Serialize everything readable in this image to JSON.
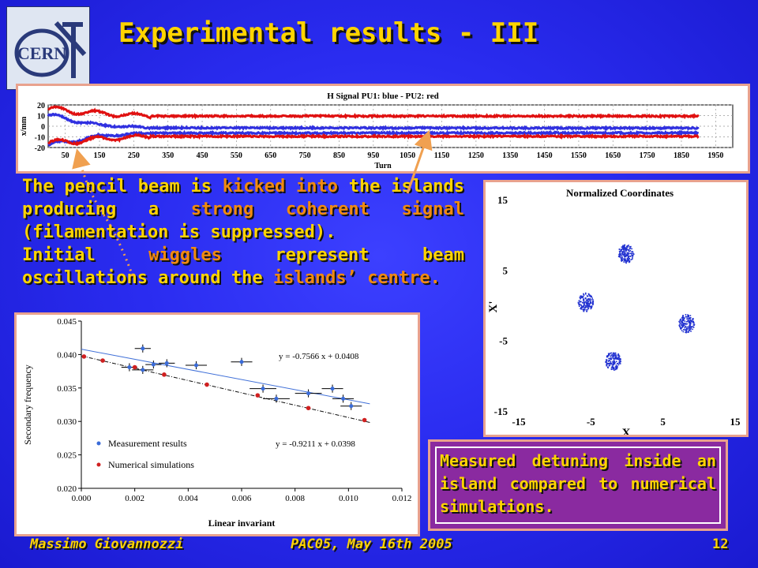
{
  "slide": {
    "title": "Experimental results - III",
    "logo_text": "CERN",
    "paragraph1": {
      "segments": [
        {
          "text": "The pencil beam is ",
          "highlight": false
        },
        {
          "text": "kicked into",
          "highlight": true
        },
        {
          "text": " the islands producing a ",
          "highlight": false
        },
        {
          "text": "strong coherent signal",
          "highlight": true
        },
        {
          "text": " (filamentation is suppressed).",
          "highlight": false
        }
      ]
    },
    "paragraph2": {
      "segments": [
        {
          "text": "Initial ",
          "highlight": false
        },
        {
          "text": "wiggles",
          "highlight": true
        },
        {
          "text": " represent beam oscillations around the ",
          "highlight": false
        },
        {
          "text": "islands’ centre.",
          "highlight": true
        }
      ]
    },
    "callout": "Measured detuning inside an island compared to numerical simulations.",
    "footer": {
      "author": "Massimo Giovannozzi",
      "event": "PAC05, May 16th 2005",
      "page": "12"
    },
    "colors": {
      "text": "#ffd400",
      "highlight": "#f08a10",
      "background": "#2a2cf0",
      "panel_border": "#e9a28e",
      "callout_bg": "#8a2aa0",
      "arrow": "#f0a050"
    }
  },
  "chart_data": [
    {
      "type": "scatter",
      "id": "turn-signal",
      "title": "H Signal PU1: blue - PU2: red",
      "xlabel": "Turn",
      "ylabel": "x/mm",
      "xlim": [
        0,
        2000
      ],
      "ylim": [
        -20,
        20
      ],
      "xticks": [
        50,
        150,
        250,
        350,
        450,
        550,
        650,
        750,
        850,
        950,
        1050,
        1150,
        1250,
        1350,
        1450,
        1550,
        1650,
        1750,
        1850,
        1950
      ],
      "yticks": [
        20,
        10,
        0,
        -10,
        -20
      ],
      "turn_end": 1900,
      "series": [
        {
          "name": "PU1",
          "color": "#3030e0",
          "envelope": [
            [
              0,
              14
            ],
            [
              150,
              5
            ],
            [
              300,
              2.5
            ],
            [
              1900,
              2.2
            ]
          ],
          "offset": -4
        },
        {
          "name": "PU2",
          "color": "#e01010",
          "envelope": [
            [
              0,
              16
            ],
            [
              150,
              12
            ],
            [
              300,
              9.5
            ],
            [
              1900,
              9.5
            ]
          ],
          "offset": 0
        }
      ]
    },
    {
      "type": "scatter",
      "id": "normalized-coordinates",
      "title": "Normalized Coordinates",
      "xlabel": "X",
      "ylabel": "X'",
      "xlim": [
        -15,
        15
      ],
      "ylim": [
        -15,
        15
      ],
      "xticks": [
        -15,
        -5,
        5,
        15
      ],
      "yticks": [
        15,
        5,
        -5,
        -15
      ],
      "clusters": [
        {
          "x": -0.2,
          "y": 7.4
        },
        {
          "x": -5.8,
          "y": 0.5
        },
        {
          "x": 8.2,
          "y": -2.5
        },
        {
          "x": -2.0,
          "y": -7.8
        }
      ]
    },
    {
      "type": "scatter",
      "id": "detuning",
      "xlabel": "Linear invariant",
      "ylabel": "Secondary frequency",
      "xlim": [
        0,
        0.012
      ],
      "ylim": [
        0.02,
        0.045
      ],
      "xticks": [
        "0.000",
        "0.002",
        "0.004",
        "0.006",
        "0.008",
        "0.010",
        "0.012"
      ],
      "yticks": [
        "0.045",
        "0.040",
        "0.035",
        "0.030",
        "0.025",
        "0.020"
      ],
      "legend": [
        {
          "label": "Measurement results",
          "color": "#3a6bd8"
        },
        {
          "label": "Numerical simulations",
          "color": "#d02020"
        }
      ],
      "series": [
        {
          "name": "Measurement results",
          "color": "#3a6bd8",
          "points": [
            [
              0.0023,
              0.0409,
              0.0003,
              0.0006
            ],
            [
              0.0018,
              0.0381,
              0.0003,
              0.0006
            ],
            [
              0.0023,
              0.0377,
              0.0004,
              0.0006
            ],
            [
              0.0027,
              0.0385,
              0.0003,
              0.0006
            ],
            [
              0.0032,
              0.0387,
              0.0003,
              0.0006
            ],
            [
              0.0043,
              0.0384,
              0.0004,
              0.0006
            ],
            [
              0.006,
              0.0389,
              0.0004,
              0.0006
            ],
            [
              0.0068,
              0.0349,
              0.0005,
              0.0006
            ],
            [
              0.0073,
              0.0334,
              0.0005,
              0.0006
            ],
            [
              0.0085,
              0.0342,
              0.0005,
              0.0006
            ],
            [
              0.0094,
              0.0349,
              0.0004,
              0.0006
            ],
            [
              0.0098,
              0.0334,
              0.0004,
              0.0006
            ],
            [
              0.0101,
              0.0323,
              0.0004,
              0.0006
            ]
          ]
        },
        {
          "name": "Numerical simulations",
          "color": "#d02020",
          "points": [
            [
              0.0001,
              0.0397
            ],
            [
              0.0008,
              0.0391
            ],
            [
              0.002,
              0.0381
            ],
            [
              0.0031,
              0.037
            ],
            [
              0.0047,
              0.0355
            ],
            [
              0.0066,
              0.0339
            ],
            [
              0.0085,
              0.032
            ],
            [
              0.0106,
              0.0302
            ]
          ]
        }
      ],
      "fits": [
        {
          "label": "y = -0.7566 x + 0.0408",
          "slope": -0.7566,
          "intercept": 0.0408,
          "color": "#4070d8",
          "dash": false,
          "x_range": [
            0.0,
            0.0108
          ]
        },
        {
          "label": "y = -0.9211 x + 0.0398",
          "slope": -0.9211,
          "intercept": 0.0398,
          "color": "#111111",
          "dash": true,
          "x_range": [
            0.0,
            0.0108
          ]
        }
      ]
    }
  ]
}
